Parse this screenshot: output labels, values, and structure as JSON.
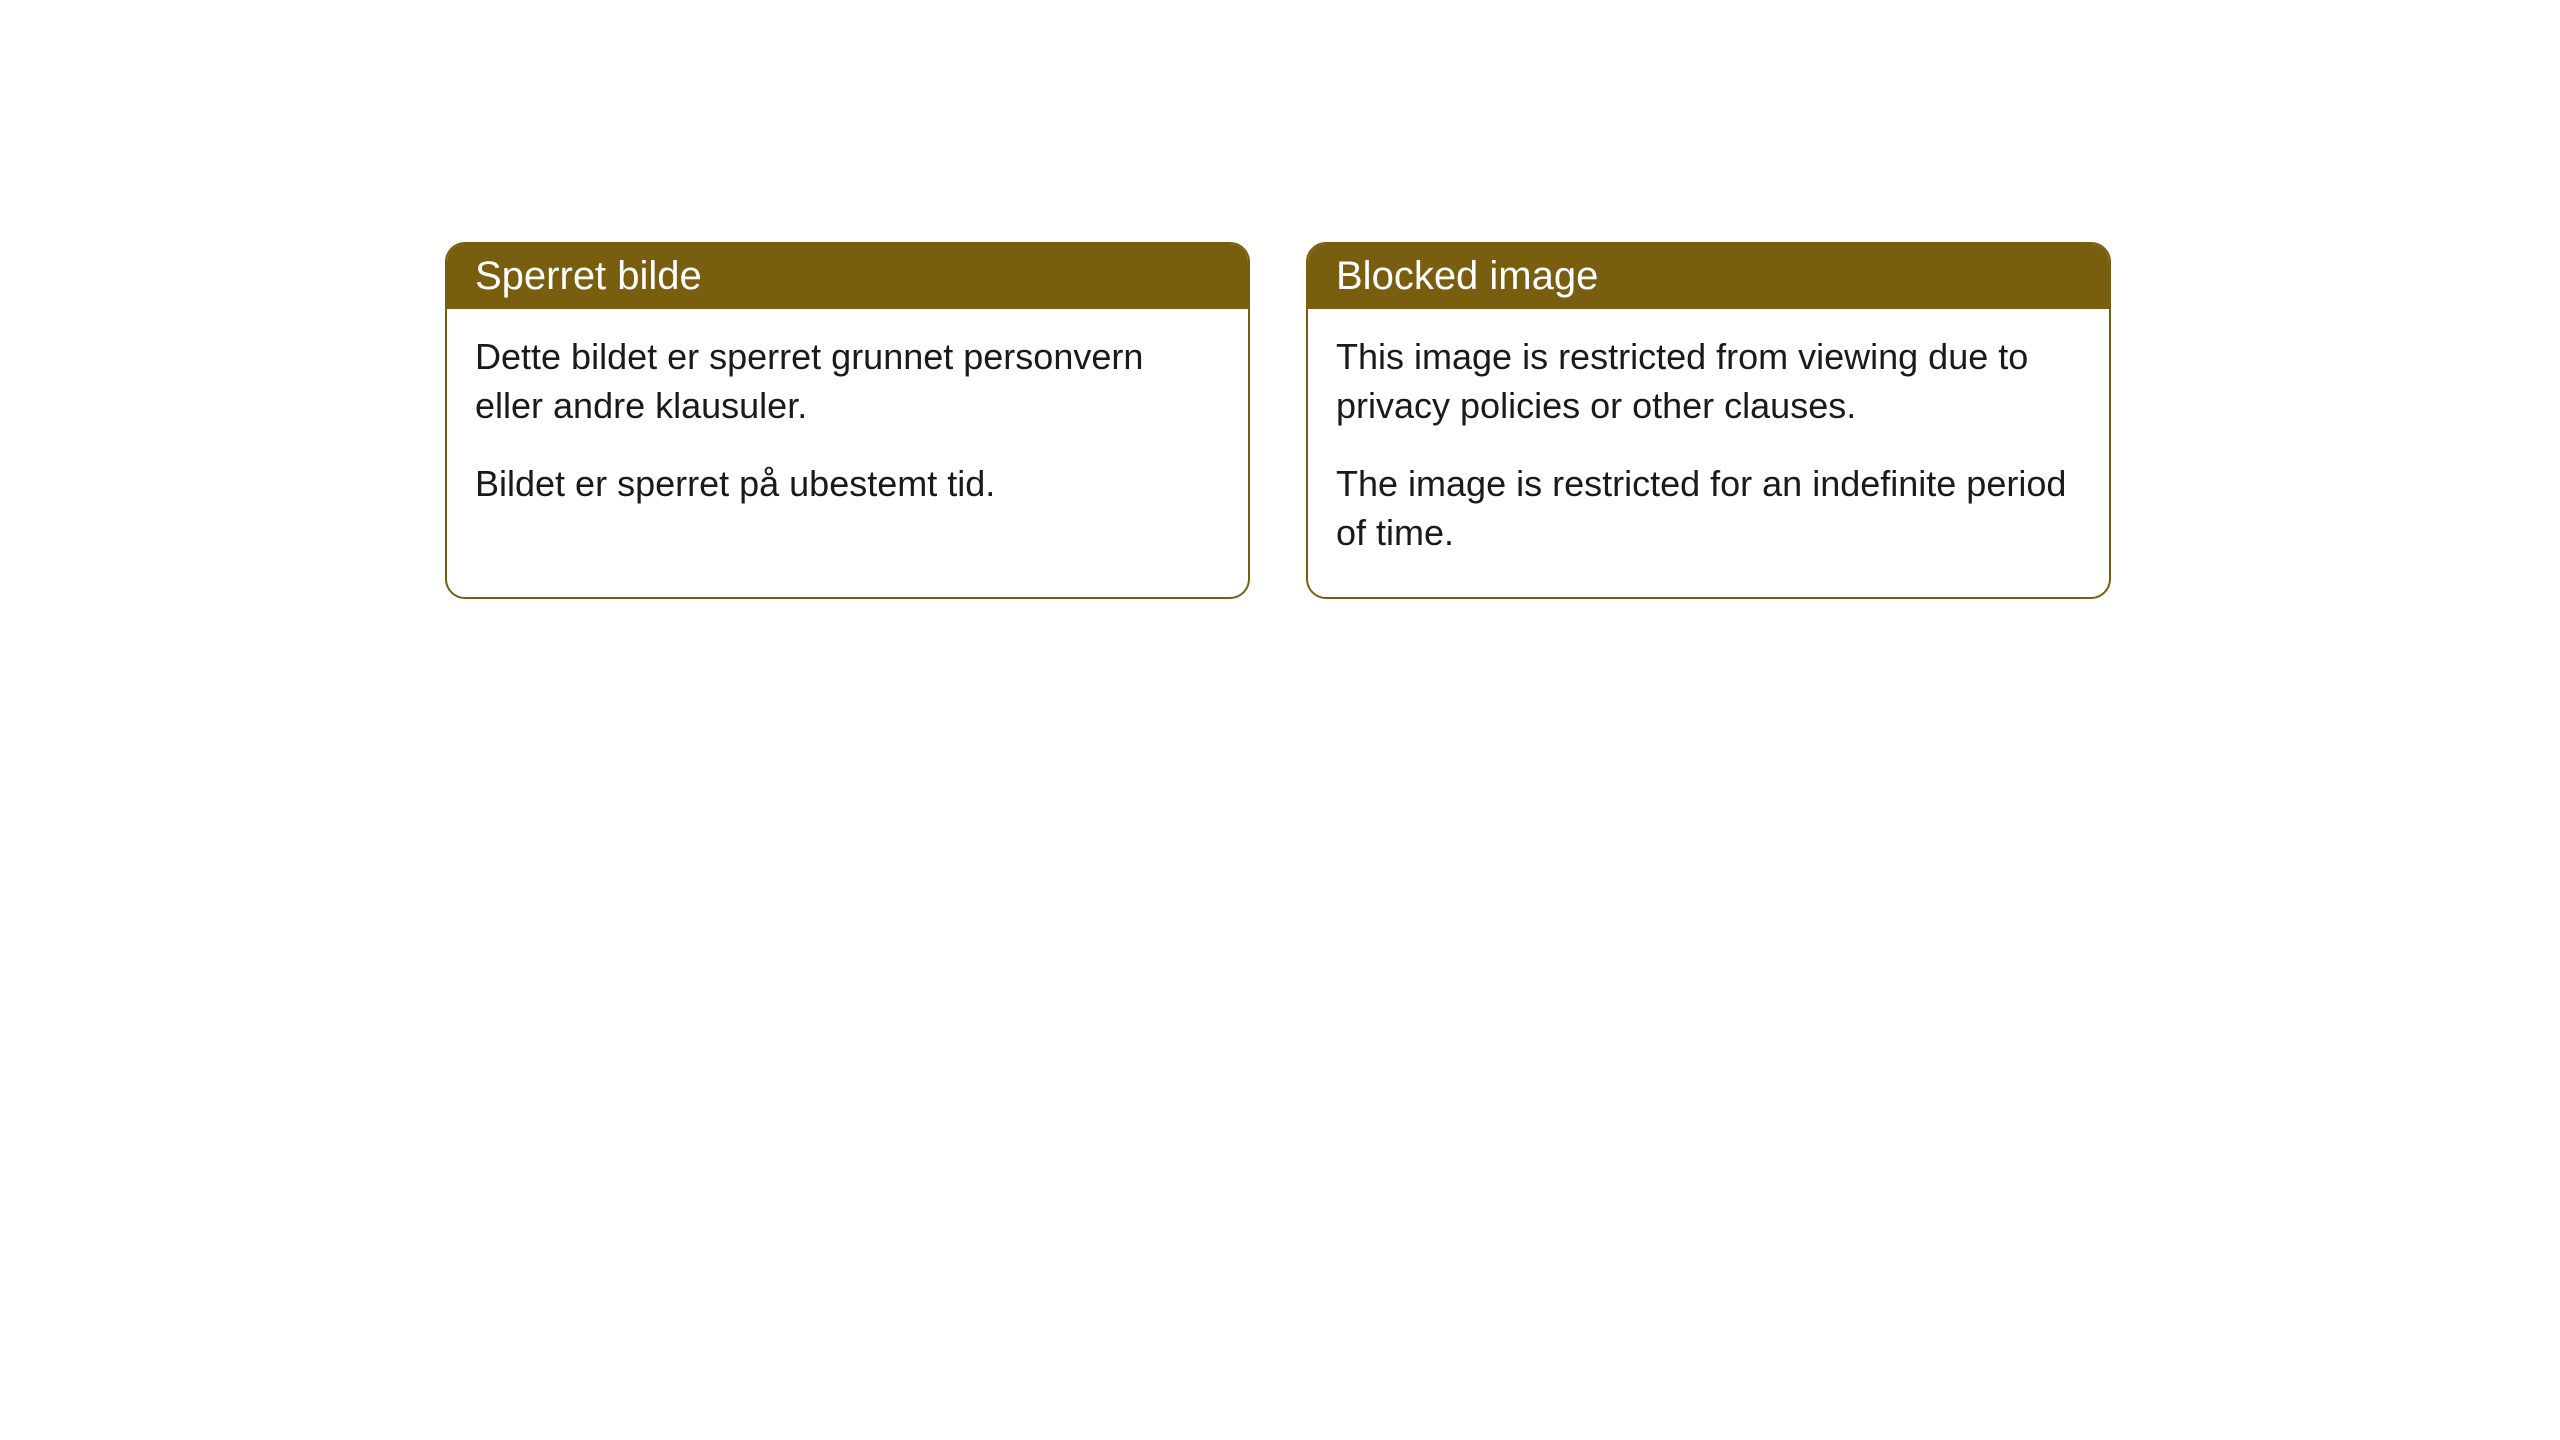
{
  "cards": [
    {
      "title": "Sperret bilde",
      "paragraph1": "Dette bildet er sperret grunnet personvern eller andre klausuler.",
      "paragraph2": "Bildet er sperret på ubestemt tid."
    },
    {
      "title": "Blocked image",
      "paragraph1": "This image is restricted from viewing due to privacy policies or other clauses.",
      "paragraph2": "The image is restricted for an indefinite period of time."
    }
  ],
  "colors": {
    "header_bg": "#7a5e0f",
    "header_text": "#ffffff",
    "border": "#7a5e0f",
    "body_text": "#1a1a1a",
    "card_bg": "#ffffff",
    "page_bg": "#ffffff"
  }
}
